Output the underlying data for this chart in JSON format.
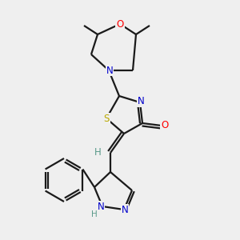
{
  "bg_color": "#efefef",
  "bond_color": "#1a1a1a",
  "atom_colors": {
    "O": "#ff0000",
    "N": "#0000cc",
    "S": "#bbaa00",
    "C": "#1a1a1a",
    "H": "#5a9a8a"
  },
  "lw": 1.6,
  "fs": 8.5,
  "figsize": [
    3.0,
    3.0
  ],
  "dpi": 100
}
